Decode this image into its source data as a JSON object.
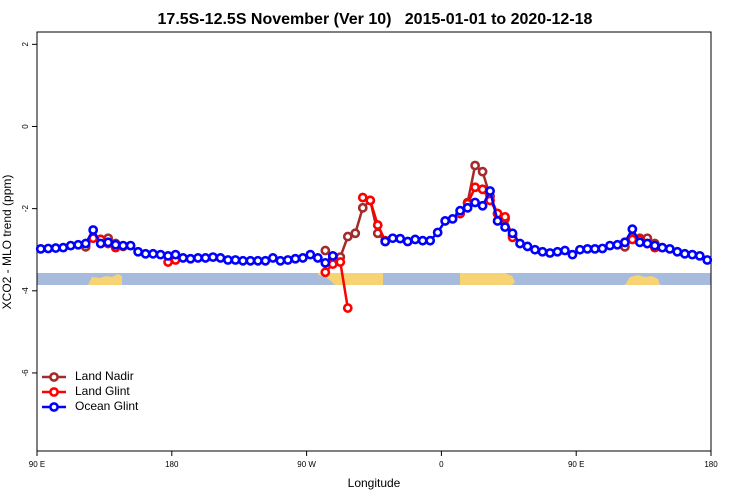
{
  "chart_data": {
    "type": "line",
    "title": "17.5S-12.5S November (Ver 10)   2015-01-01 to 2020-12-18",
    "x_label": "Longitude",
    "y_label": "XCO2 - MLO trend (ppm)",
    "xlim": [
      90,
      540
    ],
    "ylim": [
      -7.9,
      2.3
    ],
    "xticks": [
      {
        "value": 90,
        "label": "90 E"
      },
      180,
      {
        "value": 270,
        "label": "90 W"
      },
      {
        "value": 360,
        "label": "0"
      },
      {
        "value": 450,
        "label": "90 E"
      },
      {
        "value": 540,
        "label": "180"
      }
    ],
    "yticks": [
      2,
      0,
      -2,
      -4,
      -6
    ],
    "legend": "bottomleft",
    "x": [
      92.5,
      97.5,
      102.5,
      107.5,
      112.5,
      117.5,
      122.5,
      127.5,
      132.5,
      137.5,
      142.5,
      147.5,
      152.5,
      157.5,
      162.5,
      167.5,
      172.5,
      177.5,
      182.5,
      187.5,
      192.5,
      197.5,
      202.5,
      207.5,
      212.5,
      217.5,
      222.5,
      227.5,
      232.5,
      237.5,
      242.5,
      247.5,
      252.5,
      257.5,
      262.5,
      267.5,
      272.5,
      277.5,
      282.5,
      287.5,
      292.5,
      297.5,
      302.5,
      307.5,
      312.5,
      317.5,
      322.5,
      327.5,
      332.5,
      337.5,
      342.5,
      347.5,
      352.5,
      357.5,
      362.5,
      367.5,
      372.5,
      377.5,
      382.5,
      387.5,
      392.5,
      397.5,
      402.5,
      407.5,
      412.5,
      417.5,
      422.5,
      427.5,
      432.5,
      437.5,
      442.5,
      447.5,
      452.5,
      457.5,
      462.5,
      467.5,
      472.5,
      477.5,
      482.5,
      487.5,
      492.5,
      497.5,
      502.5,
      507.5,
      512.5,
      517.5,
      522.5,
      527.5,
      532.5,
      537.5
    ],
    "series": [
      {
        "name": "Land Nadir",
        "color": "#a52a2a",
        "values": [
          null,
          null,
          null,
          null,
          null,
          null,
          -2.93,
          -2.7,
          -2.75,
          -2.72,
          -2.85,
          -2.92,
          null,
          null,
          null,
          null,
          null,
          null,
          null,
          null,
          null,
          null,
          null,
          null,
          null,
          null,
          null,
          null,
          null,
          null,
          null,
          null,
          null,
          null,
          null,
          null,
          null,
          null,
          -3.02,
          -3.2,
          -3.18,
          -2.68,
          -2.6,
          -1.98,
          -1.8,
          -2.6,
          -2.8,
          null,
          null,
          null,
          null,
          null,
          null,
          null,
          null,
          null,
          -2.12,
          -1.85,
          -0.95,
          -1.1,
          -1.7,
          -2.12,
          -2.25,
          -2.65,
          null,
          null,
          null,
          null,
          null,
          null,
          null,
          null,
          null,
          null,
          null,
          null,
          null,
          null,
          -2.93,
          -2.7,
          -2.72,
          -2.72,
          -2.85,
          -2.95,
          null,
          null,
          null,
          null,
          null,
          null
        ]
      },
      {
        "name": "Land Glint",
        "color": "#ff0000",
        "values": [
          null,
          null,
          null,
          null,
          null,
          null,
          null,
          -2.72,
          -2.75,
          -2.85,
          -2.95,
          null,
          null,
          null,
          null,
          null,
          null,
          -3.3,
          -3.25,
          null,
          null,
          null,
          null,
          null,
          null,
          null,
          null,
          null,
          null,
          null,
          null,
          null,
          null,
          null,
          null,
          null,
          null,
          null,
          -3.55,
          -3.35,
          -3.3,
          -4.42,
          null,
          -1.73,
          -1.8,
          -2.4,
          -2.78,
          null,
          null,
          null,
          null,
          null,
          null,
          null,
          null,
          null,
          -2.12,
          -1.88,
          -1.48,
          -1.53,
          -1.8,
          -2.12,
          -2.2,
          -2.7,
          null,
          null,
          null,
          null,
          null,
          null,
          null,
          null,
          null,
          null,
          null,
          null,
          null,
          null,
          -2.82,
          -2.75,
          -2.75,
          -2.85,
          -2.95,
          null,
          null,
          null,
          null,
          null,
          null,
          null
        ]
      },
      {
        "name": "Ocean Glint",
        "color": "#0000ff",
        "values": [
          -2.98,
          -2.97,
          -2.96,
          -2.95,
          -2.9,
          -2.88,
          -2.85,
          -2.52,
          -2.85,
          -2.82,
          -2.88,
          -2.9,
          -2.9,
          -3.05,
          -3.1,
          -3.1,
          -3.12,
          -3.15,
          -3.12,
          -3.2,
          -3.22,
          -3.2,
          -3.2,
          -3.18,
          -3.2,
          -3.25,
          -3.25,
          -3.27,
          -3.27,
          -3.27,
          -3.27,
          -3.2,
          -3.27,
          -3.25,
          -3.22,
          -3.2,
          -3.12,
          -3.2,
          -3.32,
          -3.15,
          null,
          null,
          null,
          null,
          null,
          null,
          -2.8,
          -2.72,
          -2.73,
          -2.8,
          -2.75,
          -2.78,
          -2.78,
          -2.58,
          -2.3,
          -2.25,
          -2.05,
          -1.98,
          -1.85,
          -1.93,
          -1.57,
          -2.3,
          -2.45,
          -2.6,
          -2.85,
          -2.92,
          -3.0,
          -3.05,
          -3.08,
          -3.05,
          -3.02,
          -3.12,
          -3.0,
          -2.98,
          -2.98,
          -2.97,
          -2.9,
          -2.88,
          -2.82,
          -2.5,
          -2.82,
          -2.85,
          -2.9,
          -2.95,
          -2.98,
          -3.05,
          -3.1,
          -3.12,
          -3.15,
          -3.25
        ]
      }
    ]
  }
}
